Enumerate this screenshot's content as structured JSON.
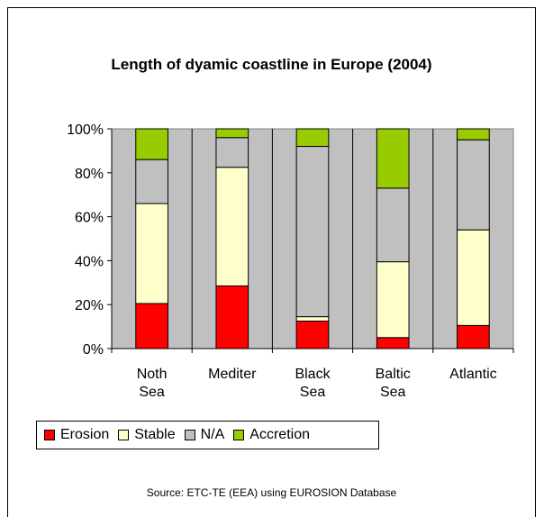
{
  "chart_data": {
    "type": "bar",
    "stacked": true,
    "title": "Length of dyamic coastline in Europe (2004)",
    "categories": [
      [
        "Noth",
        "Sea"
      ],
      [
        "Mediter",
        ""
      ],
      [
        "Black",
        "Sea"
      ],
      [
        "Baltic",
        "Sea"
      ],
      [
        "Atlantic",
        ""
      ]
    ],
    "series": [
      {
        "name": "Erosion",
        "color": "#ff0000",
        "values": [
          20.5,
          28.5,
          12.5,
          5,
          10.5
        ]
      },
      {
        "name": "Stable",
        "color": "#ffffcc",
        "values": [
          45.5,
          54,
          2,
          34.5,
          43.5
        ]
      },
      {
        "name": "N/A",
        "color": "#c0c0c0",
        "values": [
          20,
          13.5,
          77.5,
          33.5,
          41
        ]
      },
      {
        "name": "Accretion",
        "color": "#99cc00",
        "values": [
          14,
          4,
          8,
          27,
          5
        ]
      }
    ],
    "yticks": [
      "0%",
      "20%",
      "40%",
      "60%",
      "80%",
      "100%"
    ],
    "ylim": [
      0,
      100
    ],
    "plot_background": "#c0c0c0",
    "source": "Source: ETC-TE (EEA) using  EUROSION Database"
  }
}
